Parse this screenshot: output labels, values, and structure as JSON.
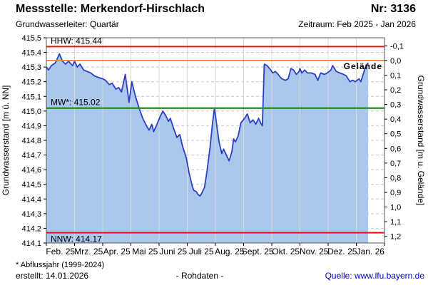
{
  "header": {
    "title": "Messstelle: Merkendorf-Hirschlach",
    "number": "Nr: 3136",
    "aquifer": "Grundwasserleiter: Quartär",
    "period": "Zeitraum: Feb 2025 - Jan 2026"
  },
  "footer": {
    "footnote": "* Abflussjahr (1999-2024)",
    "created": "erstellt: 14.01.2026",
    "data_type": "- Rohdaten -",
    "source": "Quelle: www.lfu.bayern.de"
  },
  "chart_data": {
    "type": "area",
    "title": "Messstelle: Merkendorf-Hirschlach Nr: 3136",
    "xlabel": "",
    "ylabel": "Grundwasserstand [m ü. NN]",
    "x_axis": {
      "month_labels": [
        "Feb. 25",
        "Mrz. 25",
        "Apr. 25",
        "Mai 25",
        "Juni 25",
        "Juli 25",
        "Aug. 25",
        "Sept. 25",
        "Okt. 25",
        "Nov. 25",
        "Dez. 25",
        "Jan. 26"
      ]
    },
    "y_left": {
      "label": "Grundwasserstand [m ü. NN]",
      "min": 414.1,
      "max": 415.5,
      "tick_step": 0.1,
      "tick_labels": [
        "415,5",
        "415,4",
        "415,3",
        "415,2",
        "415,1",
        "415,0",
        "414,9",
        "414,8",
        "414,7",
        "414,6",
        "414,5",
        "414,4",
        "414,3",
        "414,2",
        "414,1"
      ]
    },
    "y_right": {
      "label": "Grundwasserstand [m u. Gelände]",
      "ground_level_m_nn": 415.345,
      "tick_min": -0.1,
      "tick_step": 0.1,
      "tick_labels": [
        "-0,1",
        "0,0",
        "0,1",
        "0,2",
        "0,3",
        "0,4",
        "0,5",
        "0,6",
        "0,7",
        "0,8",
        "0,9",
        "1,0",
        "1,1",
        "1,2"
      ]
    },
    "reference_lines": [
      {
        "name": "HHW",
        "value": 415.44,
        "label": "HHW: 415.44",
        "color": "#e41212",
        "width": 2,
        "label_side": "above-left"
      },
      {
        "name": "Gelände",
        "value": 415.345,
        "label": "Gelände",
        "color": "#f58233",
        "width": 1.8,
        "label_side": "below-right"
      },
      {
        "name": "MW",
        "value": 415.02,
        "label": "MW*: 415.02",
        "color": "#1e8c1e",
        "width": 2.2,
        "label_side": "above-left"
      },
      {
        "name": "NNW",
        "value": 414.17,
        "label": "NNW: 414.17",
        "color": "#e41212",
        "width": 2,
        "label_side": "below-left"
      }
    ],
    "series": [
      {
        "name": "Grundwasserstand (Rohdaten)",
        "points": [
          [
            "2025-02-01",
            415.3
          ],
          [
            "2025-02-03",
            415.28
          ],
          [
            "2025-02-06",
            415.31
          ],
          [
            "2025-02-10",
            415.33
          ],
          [
            "2025-02-14",
            415.39
          ],
          [
            "2025-02-17",
            415.34
          ],
          [
            "2025-02-20",
            415.32
          ],
          [
            "2025-02-23",
            415.34
          ],
          [
            "2025-02-27",
            415.31
          ],
          [
            "2025-03-01",
            415.34
          ],
          [
            "2025-03-04",
            415.3
          ],
          [
            "2025-03-07",
            415.32
          ],
          [
            "2025-03-11",
            415.28
          ],
          [
            "2025-03-15",
            415.27
          ],
          [
            "2025-03-19",
            415.26
          ],
          [
            "2025-03-23",
            415.24
          ],
          [
            "2025-03-27",
            415.23
          ],
          [
            "2025-04-01",
            415.22
          ],
          [
            "2025-04-04",
            415.21
          ],
          [
            "2025-04-08",
            415.18
          ],
          [
            "2025-04-11",
            415.19
          ],
          [
            "2025-04-15",
            415.15
          ],
          [
            "2025-04-18",
            415.16
          ],
          [
            "2025-04-21",
            415.13
          ],
          [
            "2025-04-25",
            415.25
          ],
          [
            "2025-04-29",
            415.06
          ],
          [
            "2025-05-02",
            415.2
          ],
          [
            "2025-05-06",
            415.1
          ],
          [
            "2025-05-10",
            415.02
          ],
          [
            "2025-05-14",
            414.95
          ],
          [
            "2025-05-18",
            414.9
          ],
          [
            "2025-05-21",
            414.87
          ],
          [
            "2025-05-24",
            414.91
          ],
          [
            "2025-05-26",
            414.86
          ],
          [
            "2025-05-29",
            414.9
          ],
          [
            "2025-06-02",
            414.96
          ],
          [
            "2025-06-05",
            415.0
          ],
          [
            "2025-06-08",
            414.97
          ],
          [
            "2025-06-11",
            414.93
          ],
          [
            "2025-06-13",
            414.95
          ],
          [
            "2025-06-16",
            414.89
          ],
          [
            "2025-06-20",
            414.82
          ],
          [
            "2025-06-23",
            414.84
          ],
          [
            "2025-06-26",
            414.76
          ],
          [
            "2025-06-30",
            414.68
          ],
          [
            "2025-07-03",
            414.58
          ],
          [
            "2025-07-06",
            414.5
          ],
          [
            "2025-07-08",
            414.46
          ],
          [
            "2025-07-11",
            414.45
          ],
          [
            "2025-07-13",
            414.43
          ],
          [
            "2025-07-15",
            414.42
          ],
          [
            "2025-07-17",
            414.44
          ],
          [
            "2025-07-20",
            414.48
          ],
          [
            "2025-07-23",
            414.6
          ],
          [
            "2025-07-26",
            414.75
          ],
          [
            "2025-07-29",
            414.93
          ],
          [
            "2025-07-31",
            415.02
          ],
          [
            "2025-08-03",
            414.88
          ],
          [
            "2025-08-05",
            414.79
          ],
          [
            "2025-08-08",
            414.71
          ],
          [
            "2025-08-10",
            414.74
          ],
          [
            "2025-08-13",
            414.7
          ],
          [
            "2025-08-16",
            414.66
          ],
          [
            "2025-08-19",
            414.72
          ],
          [
            "2025-08-21",
            414.81
          ],
          [
            "2025-08-23",
            414.79
          ],
          [
            "2025-08-26",
            414.83
          ],
          [
            "2025-08-29",
            414.92
          ],
          [
            "2025-09-02",
            414.95
          ],
          [
            "2025-09-05",
            414.98
          ],
          [
            "2025-09-08",
            414.92
          ],
          [
            "2025-09-11",
            414.94
          ],
          [
            "2025-09-14",
            414.91
          ],
          [
            "2025-09-17",
            414.95
          ],
          [
            "2025-09-19",
            414.92
          ],
          [
            "2025-09-21",
            414.9
          ],
          [
            "2025-09-23",
            415.32
          ],
          [
            "2025-09-26",
            415.31
          ],
          [
            "2025-09-30",
            415.28
          ],
          [
            "2025-10-02",
            415.26
          ],
          [
            "2025-10-05",
            415.27
          ],
          [
            "2025-10-08",
            415.25
          ],
          [
            "2025-10-12",
            415.22
          ],
          [
            "2025-10-16",
            415.21
          ],
          [
            "2025-10-19",
            415.22
          ],
          [
            "2025-10-22",
            415.29
          ],
          [
            "2025-10-25",
            415.28
          ],
          [
            "2025-10-28",
            415.25
          ],
          [
            "2025-10-31",
            415.27
          ],
          [
            "2025-11-01",
            415.29
          ],
          [
            "2025-11-03",
            415.26
          ],
          [
            "2025-11-06",
            415.28
          ],
          [
            "2025-11-09",
            415.26
          ],
          [
            "2025-11-13",
            415.26
          ],
          [
            "2025-11-17",
            415.25
          ],
          [
            "2025-11-20",
            415.21
          ],
          [
            "2025-11-23",
            415.26
          ],
          [
            "2025-11-27",
            415.25
          ],
          [
            "2025-11-30",
            415.26
          ],
          [
            "2025-12-04",
            415.28
          ],
          [
            "2025-12-06",
            415.31
          ],
          [
            "2025-12-10",
            415.27
          ],
          [
            "2025-12-14",
            415.26
          ],
          [
            "2025-12-18",
            415.25
          ],
          [
            "2025-12-21",
            415.24
          ],
          [
            "2025-12-25",
            415.2
          ],
          [
            "2025-12-28",
            415.21
          ],
          [
            "2025-12-31",
            415.2
          ],
          [
            "2026-01-02",
            415.21
          ],
          [
            "2026-01-04",
            415.22
          ],
          [
            "2026-01-06",
            415.2
          ],
          [
            "2026-01-09",
            415.26
          ],
          [
            "2026-01-11",
            415.3
          ],
          [
            "2026-01-14",
            415.33
          ]
        ]
      }
    ],
    "colors": {
      "line": "#2e3ec4",
      "fill": "#a9c8ec",
      "grid_h": "#c9c9c9",
      "grid_v": "#d9d9d9",
      "border": "#555555",
      "tick": "#000000",
      "link": "#0000cc"
    },
    "layout_hints": {
      "grid": "horizontal dashed per 0.1 m, vertical solid per month",
      "legend": "none",
      "y_left_range": [
        414.1,
        415.5
      ],
      "x_range": [
        "2025-02-01",
        "2026-02-01"
      ]
    }
  }
}
